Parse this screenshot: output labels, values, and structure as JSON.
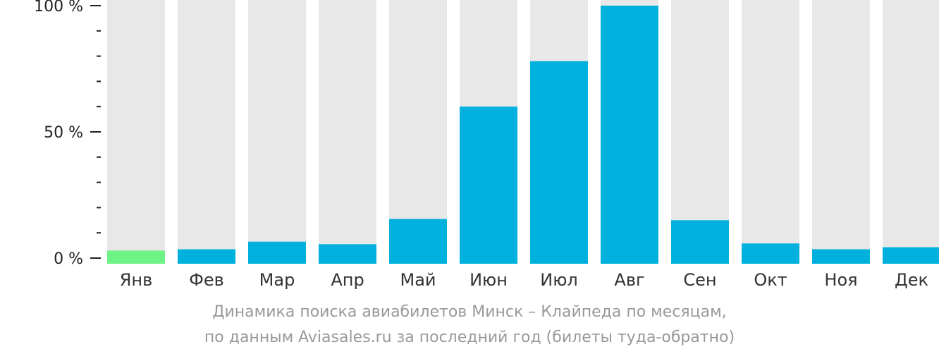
{
  "chart_data": {
    "type": "bar",
    "categories": [
      "Янв",
      "Фев",
      "Мар",
      "Апр",
      "Май",
      "Июн",
      "Июл",
      "Авг",
      "Сен",
      "Окт",
      "Ноя",
      "Дек"
    ],
    "values": [
      3,
      3.5,
      6.5,
      5.5,
      15.5,
      60,
      78,
      100,
      15,
      5.8,
      3.5,
      4.3
    ],
    "ylim": [
      0,
      100
    ],
    "y_ticks": [
      "0 %",
      "50 %",
      "100 %"
    ],
    "bar_color": "#00b1dd",
    "highlight_color": "#6ef387",
    "highlight_index": 0,
    "track_color": "#e8e8e8",
    "title_line1": "Динамика поиска авиабилетов Минск – Клайпеда по месяцам,",
    "title_line2": "по данным Aviasales.ru за последний год (билеты туда-обратно)",
    "grid": false,
    "legend": "none"
  }
}
